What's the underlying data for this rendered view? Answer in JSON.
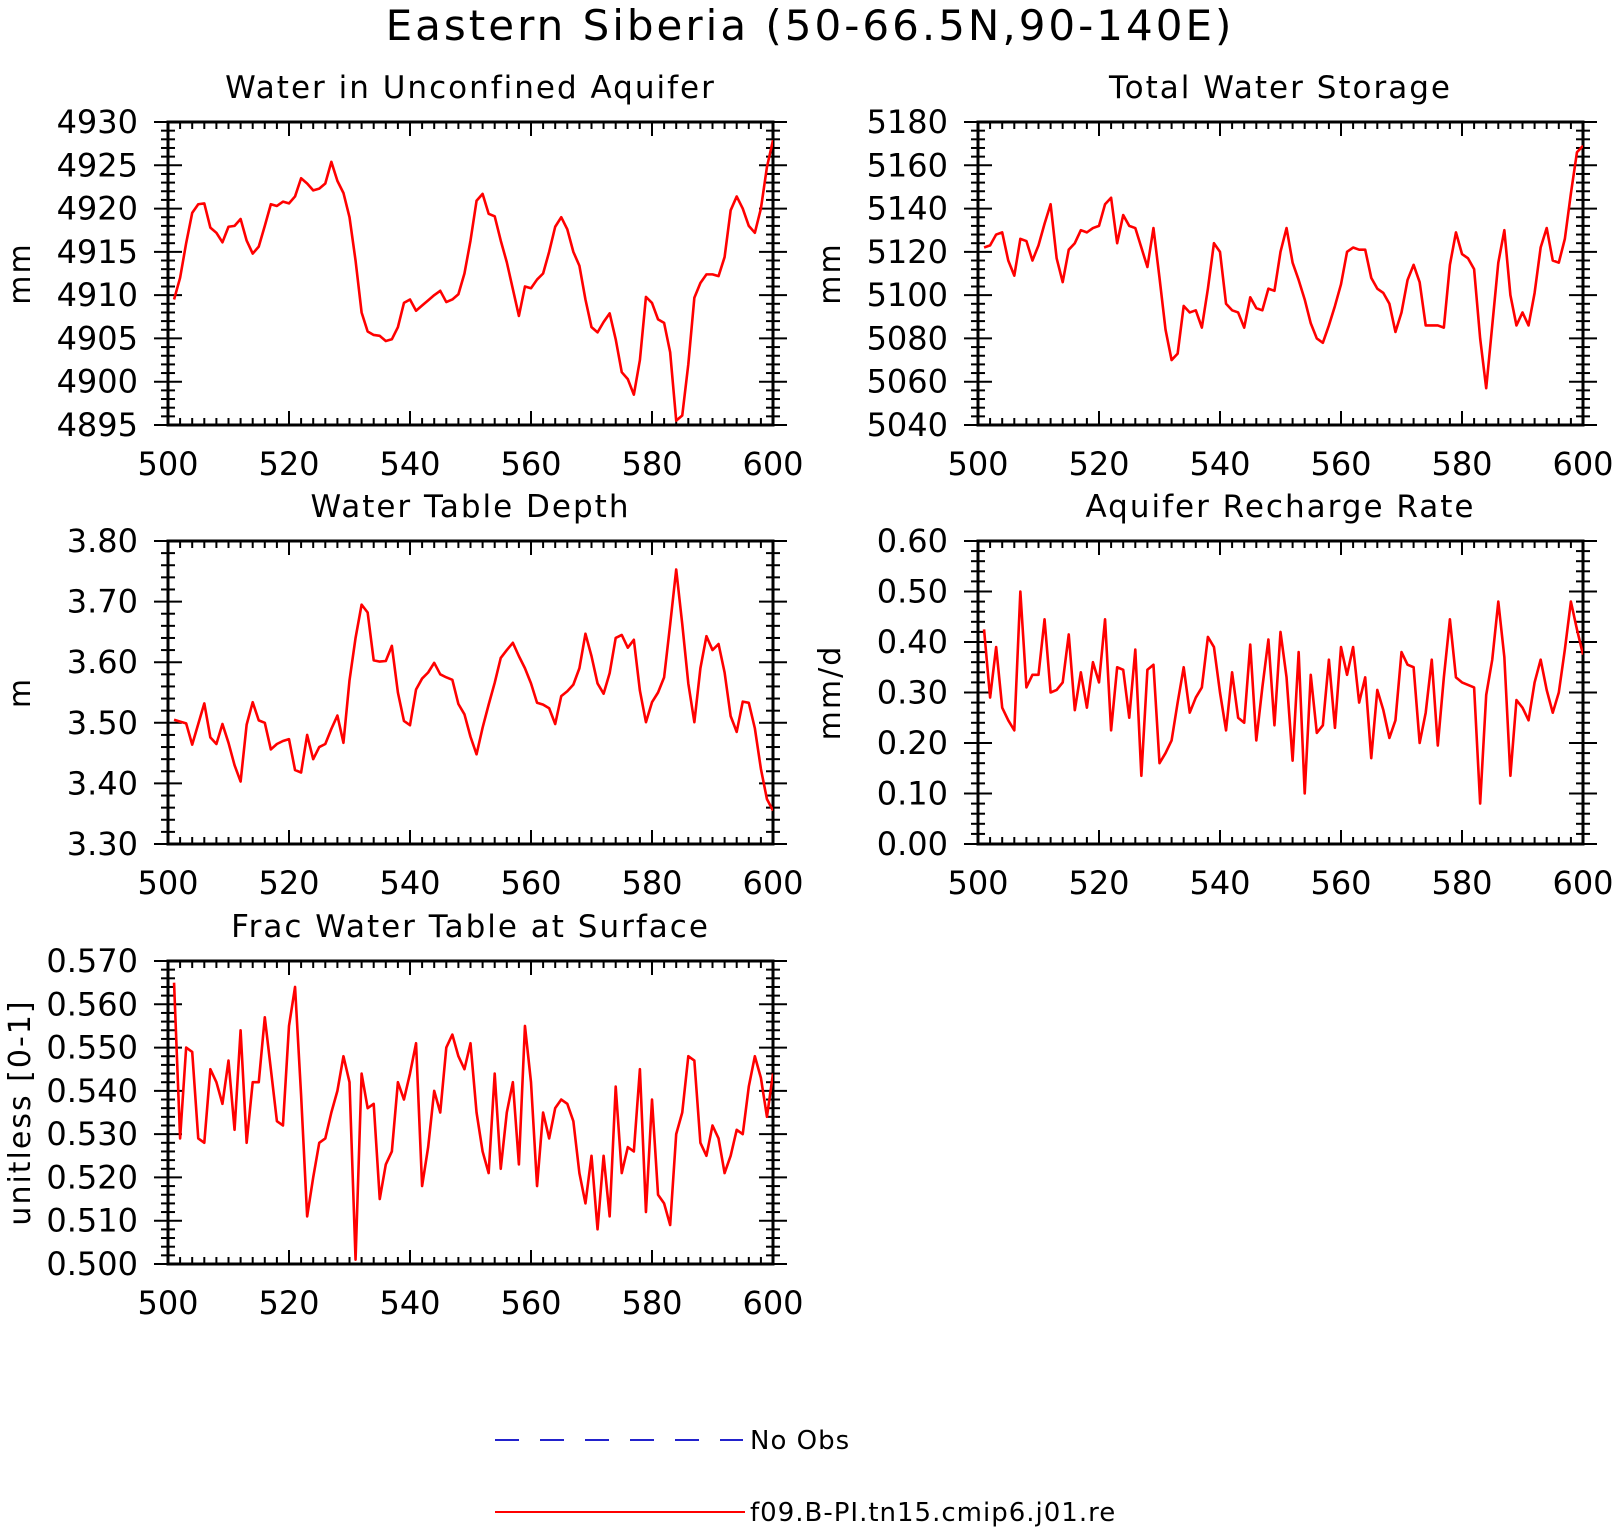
{
  "title": "Eastern Siberia (50-66.5N,90-140E)",
  "legend": {
    "entries": [
      {
        "label": "No Obs",
        "color": "#2222cc",
        "style": "dashed"
      },
      {
        "label": "f09.B-PI.tn15.cmip6.j01.re",
        "color": "#ff0000",
        "style": "solid"
      }
    ]
  },
  "chart_data": [
    {
      "type": "line",
      "title": "Water in Unconfined Aquifer",
      "ylabel": "mm",
      "xlim": [
        500,
        600
      ],
      "ylim": [
        4895,
        4930
      ],
      "xticks": [
        500,
        520,
        540,
        560,
        580,
        600
      ],
      "yticks": [
        4895,
        4900,
        4905,
        4910,
        4915,
        4920,
        4925,
        4930
      ],
      "ytick_labels": [
        "4895",
        "4900",
        "4905",
        "4910",
        "4915",
        "4920",
        "4925",
        "4930"
      ],
      "grid": false,
      "series": [
        {
          "color": "#ff0000",
          "x_start": 501,
          "values": [
            4909.5,
            4912,
            4916,
            4919.5,
            4920.5,
            4920.6,
            4917.8,
            4917.2,
            4916.1,
            4917.9,
            4918,
            4918.8,
            4916.3,
            4914.8,
            4915.6,
            4918,
            4920.5,
            4920.3,
            4920.8,
            4920.6,
            4921.4,
            4923.5,
            4922.9,
            4922.1,
            4922.3,
            4922.9,
            4925.4,
            4923.2,
            4921.8,
            4919,
            4914,
            4908,
            4905.8,
            4905.4,
            4905.3,
            4904.7,
            4904.9,
            4906.3,
            4909.1,
            4909.5,
            4908.2,
            4908.8,
            4909.4,
            4910,
            4910.5,
            4909.2,
            4909.5,
            4910.1,
            4912.5,
            4916.3,
            4920.9,
            4921.7,
            4919.4,
            4919.1,
            4916.3,
            4913.8,
            4910.7,
            4907.6,
            4911,
            4910.8,
            4911.8,
            4912.5,
            4915,
            4917.9,
            4919,
            4917.6,
            4915,
            4913.4,
            4909.5,
            4906.3,
            4905.7,
            4906.9,
            4907.9,
            4904.9,
            4901.1,
            4900.3,
            4898.5,
            4902.5,
            4909.8,
            4909.1,
            4907.2,
            4906.8,
            4903.4,
            4895.5,
            4896.1,
            4902,
            4909.7,
            4911.4,
            4912.4,
            4912.4,
            4912.2,
            4914.4,
            4919.8,
            4921.4,
            4920,
            4918,
            4917.2,
            4920,
            4924.8,
            4927.9
          ]
        }
      ]
    },
    {
      "type": "line",
      "title": "Total Water Storage",
      "ylabel": "mm",
      "xlim": [
        500,
        600
      ],
      "ylim": [
        5040,
        5180
      ],
      "xticks": [
        500,
        520,
        540,
        560,
        580,
        600
      ],
      "yticks": [
        5040,
        5060,
        5080,
        5100,
        5120,
        5140,
        5160,
        5180
      ],
      "ytick_labels": [
        "5040",
        "5060",
        "5080",
        "5100",
        "5120",
        "5140",
        "5160",
        "5180"
      ],
      "grid": false,
      "series": [
        {
          "color": "#ff0000",
          "x_start": 501,
          "values": [
            5122,
            5123,
            5128,
            5129,
            5116,
            5109,
            5126,
            5125,
            5116,
            5123,
            5133,
            5142,
            5117,
            5106,
            5121,
            5124,
            5130,
            5129,
            5131,
            5132,
            5142,
            5145,
            5124,
            5137,
            5132,
            5131,
            5122,
            5113,
            5131,
            5108,
            5084,
            5070,
            5073,
            5095,
            5092,
            5093,
            5085,
            5103,
            5124,
            5120,
            5096,
            5093,
            5092,
            5085,
            5099,
            5094,
            5093,
            5103,
            5102,
            5120,
            5131,
            5115,
            5107,
            5098,
            5087,
            5080,
            5078,
            5086,
            5095,
            5105,
            5120,
            5122,
            5121,
            5121,
            5108,
            5103,
            5101,
            5096,
            5083,
            5092,
            5107,
            5114,
            5106,
            5086,
            5086,
            5086,
            5085,
            5114,
            5129,
            5119,
            5117,
            5112,
            5080,
            5057,
            5086,
            5115,
            5130,
            5100,
            5086,
            5092,
            5086,
            5101,
            5122,
            5131,
            5116,
            5115,
            5126,
            5147,
            5166,
            5169
          ]
        }
      ]
    },
    {
      "type": "line",
      "title": "Water Table Depth",
      "ylabel": "m",
      "xlim": [
        500,
        600
      ],
      "ylim": [
        3.3,
        3.8
      ],
      "xticks": [
        500,
        520,
        540,
        560,
        580,
        600
      ],
      "yticks": [
        3.3,
        3.4,
        3.5,
        3.6,
        3.7,
        3.8
      ],
      "ytick_labels": [
        "3.30",
        "3.40",
        "3.50",
        "3.60",
        "3.70",
        "3.80"
      ],
      "grid": false,
      "series": [
        {
          "color": "#ff0000",
          "x_start": 501,
          "values": [
            3.505,
            3.502,
            3.499,
            3.464,
            3.498,
            3.532,
            3.476,
            3.465,
            3.498,
            3.467,
            3.43,
            3.403,
            3.497,
            3.534,
            3.504,
            3.5,
            3.456,
            3.465,
            3.47,
            3.473,
            3.422,
            3.418,
            3.48,
            3.44,
            3.46,
            3.465,
            3.49,
            3.512,
            3.467,
            3.57,
            3.64,
            3.695,
            3.682,
            3.603,
            3.601,
            3.602,
            3.627,
            3.55,
            3.503,
            3.496,
            3.555,
            3.573,
            3.583,
            3.599,
            3.58,
            3.575,
            3.571,
            3.531,
            3.514,
            3.477,
            3.448,
            3.492,
            3.53,
            3.566,
            3.607,
            3.62,
            3.632,
            3.61,
            3.59,
            3.565,
            3.533,
            3.53,
            3.524,
            3.498,
            3.544,
            3.552,
            3.563,
            3.59,
            3.647,
            3.61,
            3.565,
            3.548,
            3.582,
            3.64,
            3.645,
            3.624,
            3.637,
            3.553,
            3.501,
            3.534,
            3.55,
            3.575,
            3.662,
            3.753,
            3.663,
            3.565,
            3.501,
            3.59,
            3.643,
            3.62,
            3.63,
            3.583,
            3.511,
            3.485,
            3.535,
            3.533,
            3.491,
            3.424,
            3.374,
            3.355
          ]
        }
      ]
    },
    {
      "type": "line",
      "title": "Aquifer Recharge Rate",
      "ylabel": "mm/d",
      "xlim": [
        500,
        600
      ],
      "ylim": [
        0.0,
        0.6
      ],
      "xticks": [
        500,
        520,
        540,
        560,
        580,
        600
      ],
      "yticks": [
        0.0,
        0.1,
        0.2,
        0.3,
        0.4,
        0.5,
        0.6
      ],
      "ytick_labels": [
        "0.00",
        "0.10",
        "0.20",
        "0.30",
        "0.40",
        "0.50",
        "0.60"
      ],
      "grid": false,
      "series": [
        {
          "color": "#ff0000",
          "x_start": 501,
          "values": [
            0.425,
            0.29,
            0.39,
            0.27,
            0.245,
            0.225,
            0.5,
            0.31,
            0.335,
            0.335,
            0.445,
            0.3,
            0.305,
            0.32,
            0.415,
            0.265,
            0.34,
            0.27,
            0.36,
            0.32,
            0.445,
            0.225,
            0.35,
            0.345,
            0.25,
            0.385,
            0.135,
            0.345,
            0.355,
            0.16,
            0.18,
            0.205,
            0.28,
            0.35,
            0.26,
            0.29,
            0.31,
            0.41,
            0.39,
            0.3,
            0.225,
            0.34,
            0.25,
            0.24,
            0.395,
            0.205,
            0.31,
            0.405,
            0.235,
            0.42,
            0.33,
            0.165,
            0.38,
            0.1,
            0.335,
            0.22,
            0.235,
            0.365,
            0.23,
            0.39,
            0.335,
            0.39,
            0.28,
            0.33,
            0.17,
            0.305,
            0.265,
            0.21,
            0.245,
            0.38,
            0.355,
            0.35,
            0.2,
            0.26,
            0.365,
            0.195,
            0.33,
            0.445,
            0.33,
            0.32,
            0.315,
            0.31,
            0.08,
            0.295,
            0.365,
            0.48,
            0.37,
            0.135,
            0.285,
            0.27,
            0.245,
            0.32,
            0.365,
            0.305,
            0.26,
            0.3,
            0.385,
            0.48,
            0.425,
            0.375
          ]
        }
      ]
    },
    {
      "type": "line",
      "title": "Frac Water Table at Surface",
      "ylabel": "unitless [0-1]",
      "xlim": [
        500,
        600
      ],
      "ylim": [
        0.5,
        0.57
      ],
      "xticks": [
        500,
        520,
        540,
        560,
        580,
        600
      ],
      "yticks": [
        0.5,
        0.51,
        0.52,
        0.53,
        0.54,
        0.55,
        0.56,
        0.57
      ],
      "ytick_labels": [
        "0.500",
        "0.510",
        "0.520",
        "0.530",
        "0.540",
        "0.550",
        "0.560",
        "0.570"
      ],
      "grid": false,
      "series": [
        {
          "color": "#ff0000",
          "x_start": 501,
          "values": [
            0.565,
            0.529,
            0.55,
            0.549,
            0.529,
            0.528,
            0.545,
            0.542,
            0.537,
            0.547,
            0.531,
            0.554,
            0.528,
            0.542,
            0.542,
            0.557,
            0.545,
            0.533,
            0.532,
            0.555,
            0.564,
            0.539,
            0.511,
            0.52,
            0.528,
            0.529,
            0.535,
            0.54,
            0.548,
            0.542,
            0.501,
            0.544,
            0.536,
            0.537,
            0.515,
            0.523,
            0.526,
            0.542,
            0.538,
            0.544,
            0.551,
            0.518,
            0.527,
            0.54,
            0.535,
            0.55,
            0.553,
            0.548,
            0.545,
            0.551,
            0.535,
            0.526,
            0.521,
            0.544,
            0.522,
            0.535,
            0.542,
            0.523,
            0.555,
            0.542,
            0.518,
            0.535,
            0.529,
            0.536,
            0.538,
            0.537,
            0.533,
            0.521,
            0.514,
            0.525,
            0.508,
            0.525,
            0.511,
            0.541,
            0.521,
            0.527,
            0.526,
            0.545,
            0.512,
            0.538,
            0.516,
            0.514,
            0.509,
            0.53,
            0.535,
            0.548,
            0.547,
            0.528,
            0.525,
            0.532,
            0.529,
            0.521,
            0.525,
            0.531,
            0.53,
            0.541,
            0.548,
            0.543,
            0.534,
            0.544
          ]
        }
      ]
    }
  ]
}
